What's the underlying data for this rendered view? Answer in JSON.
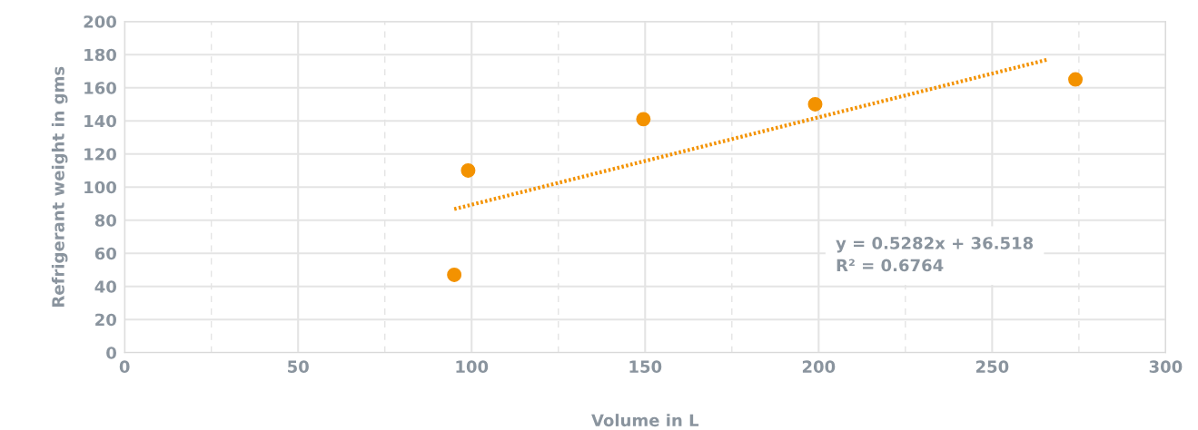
{
  "chart_data": {
    "type": "scatter",
    "xlabel": "Volume in L",
    "ylabel": "Refrigerant weight in gms",
    "x": [
      95,
      99,
      149.5,
      199,
      274
    ],
    "series": [
      {
        "color": "#f39200",
        "values": [
          47,
          110,
          141,
          150,
          165
        ],
        "marker": "circle"
      },
      {
        "type": "line",
        "color": "#f39200",
        "x": [
          95,
          266
        ],
        "values": [
          86.7,
          177.0
        ],
        "line_style": "dotted",
        "marker": "none"
      }
    ],
    "xlim": [
      0,
      300
    ],
    "ylim": [
      0,
      200
    ],
    "xticks": [
      0,
      {
        "value": 25,
        "label": null
      },
      50,
      {
        "value": 75,
        "label": null
      },
      100,
      {
        "value": 125,
        "label": null
      },
      150,
      {
        "value": 175,
        "label": null
      },
      200,
      {
        "value": 225,
        "label": null
      },
      250,
      {
        "value": 275,
        "label": null
      },
      300
    ],
    "yticks": [
      0,
      20,
      40,
      60,
      80,
      100,
      120,
      140,
      160,
      180,
      200
    ],
    "grid": true,
    "legend": false,
    "annotations": [
      "y = 0.5282x + 36.518",
      "R² = 0.6764"
    ]
  }
}
